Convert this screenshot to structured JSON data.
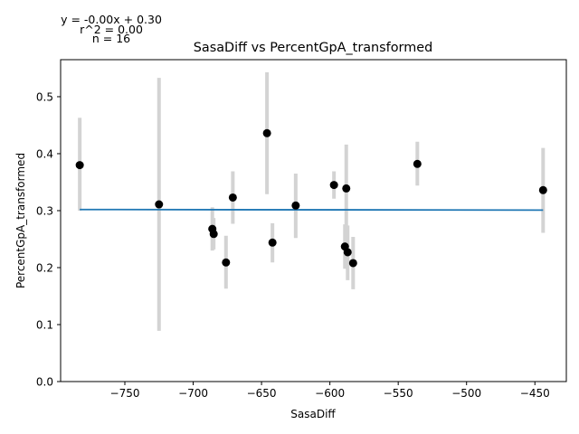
{
  "chart_data": {
    "type": "scatter",
    "title": "SasaDiff vs PercentGpA_transformed",
    "xlabel": "SasaDiff",
    "ylabel": "PercentGpA_transformed",
    "xlim": [
      -797,
      -427
    ],
    "ylim": [
      0.0,
      0.565
    ],
    "xticks": [
      -750,
      -700,
      -650,
      -600,
      -550,
      -500,
      -450
    ],
    "yticks": [
      0.0,
      0.1,
      0.2,
      0.3,
      0.4,
      0.5
    ],
    "xtick_labels": [
      "−750",
      "−700",
      "−650",
      "−600",
      "−550",
      "−500",
      "−450"
    ],
    "ytick_labels": [
      "0.0",
      "0.1",
      "0.2",
      "0.3",
      "0.4",
      "0.5"
    ],
    "grid": false,
    "annotations": [
      "y = -0.00x + 0.30",
      "r^2 = 0.00",
      "n = 16"
    ],
    "points": [
      {
        "x": -783,
        "y": 0.38,
        "ylow": 0.3,
        "yhigh": 0.463
      },
      {
        "x": -725,
        "y": 0.311,
        "ylow": 0.089,
        "yhigh": 0.533
      },
      {
        "x": -686,
        "y": 0.268,
        "ylow": 0.23,
        "yhigh": 0.306
      },
      {
        "x": -685,
        "y": 0.259,
        "ylow": 0.232,
        "yhigh": 0.287
      },
      {
        "x": -676,
        "y": 0.209,
        "ylow": 0.163,
        "yhigh": 0.256
      },
      {
        "x": -671,
        "y": 0.323,
        "ylow": 0.277,
        "yhigh": 0.369
      },
      {
        "x": -646,
        "y": 0.436,
        "ylow": 0.329,
        "yhigh": 0.543
      },
      {
        "x": -642,
        "y": 0.244,
        "ylow": 0.209,
        "yhigh": 0.278
      },
      {
        "x": -625,
        "y": 0.309,
        "ylow": 0.252,
        "yhigh": 0.365
      },
      {
        "x": -597,
        "y": 0.345,
        "ylow": 0.321,
        "yhigh": 0.369
      },
      {
        "x": -589,
        "y": 0.237,
        "ylow": 0.198,
        "yhigh": 0.276
      },
      {
        "x": -588,
        "y": 0.339,
        "ylow": 0.262,
        "yhigh": 0.416
      },
      {
        "x": -587,
        "y": 0.227,
        "ylow": 0.178,
        "yhigh": 0.274
      },
      {
        "x": -583,
        "y": 0.208,
        "ylow": 0.162,
        "yhigh": 0.254
      },
      {
        "x": -536,
        "y": 0.382,
        "ylow": 0.344,
        "yhigh": 0.421
      },
      {
        "x": -444,
        "y": 0.336,
        "ylow": 0.261,
        "yhigh": 0.41
      }
    ],
    "fit_line": {
      "x": [
        -783,
        -444
      ],
      "y": [
        0.302,
        0.301
      ]
    },
    "colors": {
      "points": "#000000",
      "errorbars": "#d3d3d3",
      "fit": "#1f77b4",
      "axes": "#000000"
    }
  }
}
